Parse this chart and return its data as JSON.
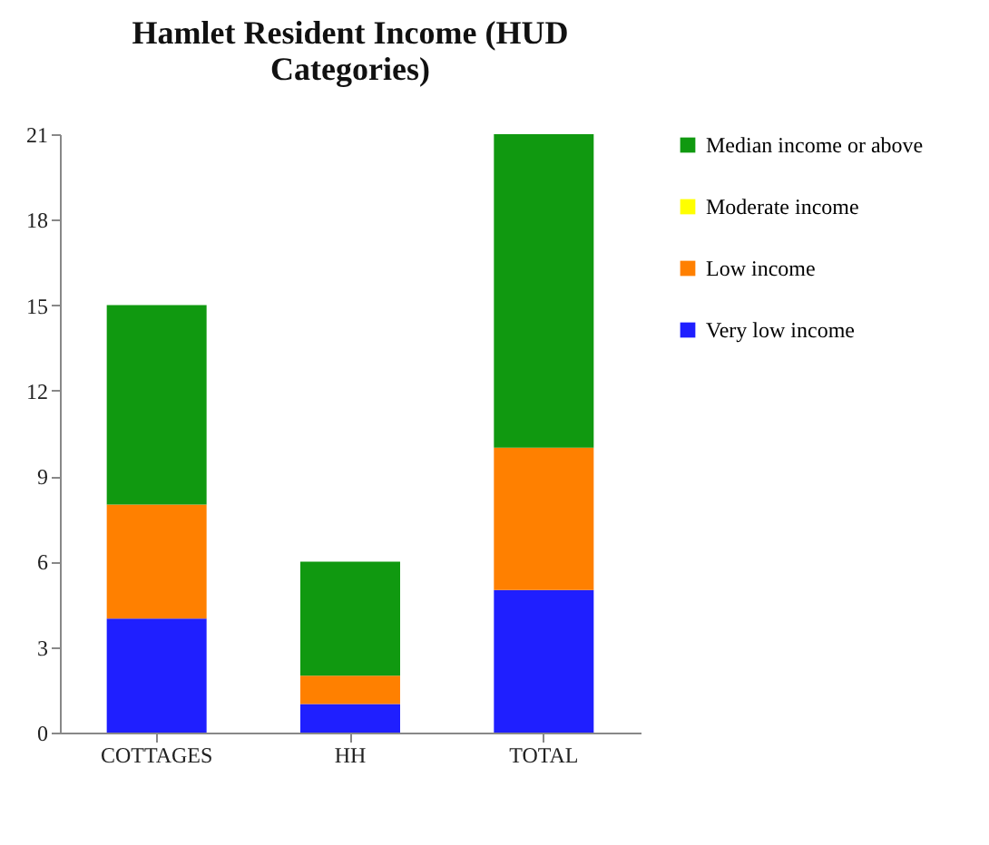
{
  "chart_data": {
    "type": "bar",
    "title": "Hamlet Resident Income (HUD Categories)",
    "categories": [
      "COTTAGES",
      "HH",
      "TOTAL"
    ],
    "stacked": true,
    "series": [
      {
        "name": "Very low income",
        "color": "#1f1fff",
        "values": [
          4,
          1,
          5
        ]
      },
      {
        "name": "Low income",
        "color": "#ff8000",
        "values": [
          4,
          1,
          5
        ]
      },
      {
        "name": "Moderate income",
        "color": "#ffff00",
        "values": [
          0,
          0,
          0
        ]
      },
      {
        "name": "Median income or above",
        "color": "#109910",
        "values": [
          7,
          4,
          11
        ]
      }
    ],
    "ylim": [
      0,
      21
    ],
    "yticks": [
      0,
      3,
      6,
      9,
      12,
      15,
      18,
      21
    ],
    "grid": false,
    "legend": "right"
  }
}
